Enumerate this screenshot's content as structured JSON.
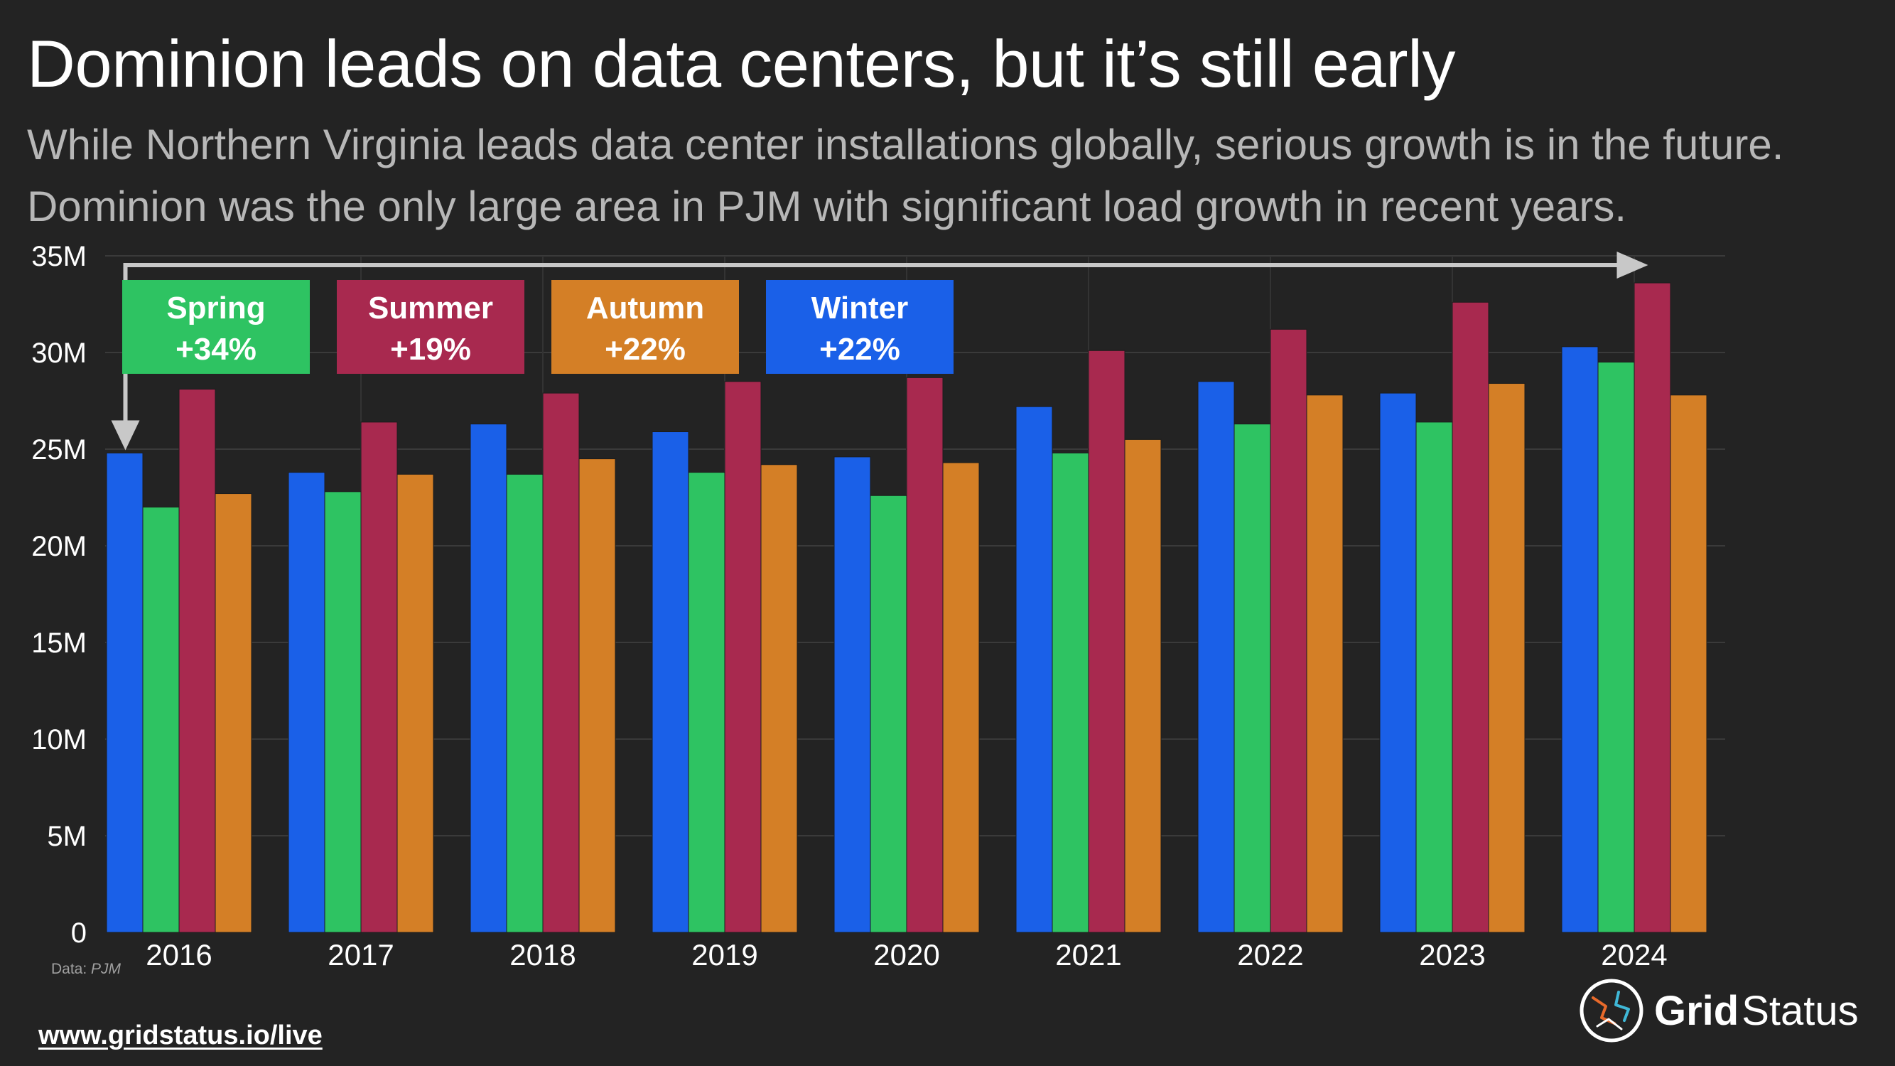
{
  "title": "Dominion leads on data centers, but it’s still early",
  "subtitle": "While Northern Virginia leads data center installations globally, serious growth is in the future. Dominion was the only large area in PJM with significant load growth in recent years.",
  "source": {
    "prefix": "Data:",
    "name": "PJM"
  },
  "link": "www.gridstatus.io/live",
  "brand": {
    "part1": "Grid",
    "part2": "Status",
    "logo_icon": "grid-status-logo-icon"
  },
  "chart_data": {
    "type": "bar",
    "categories": [
      "2016",
      "2017",
      "2018",
      "2019",
      "2020",
      "2021",
      "2022",
      "2023",
      "2024"
    ],
    "series": [
      {
        "name": "Winter",
        "color": "#1a60e8",
        "values": [
          24.8,
          23.8,
          26.3,
          25.9,
          24.6,
          27.2,
          28.5,
          27.9,
          30.3
        ]
      },
      {
        "name": "Spring",
        "color": "#2ec362",
        "values": [
          22.0,
          22.8,
          23.7,
          23.8,
          22.6,
          24.8,
          26.3,
          26.4,
          29.5
        ]
      },
      {
        "name": "Summer",
        "color": "#a8294f",
        "values": [
          28.1,
          26.4,
          27.9,
          28.5,
          28.7,
          30.1,
          31.2,
          32.6,
          33.6
        ]
      },
      {
        "name": "Autumn",
        "color": "#d47f26",
        "values": [
          22.7,
          23.7,
          24.5,
          24.2,
          24.3,
          25.5,
          27.8,
          28.4,
          27.8
        ]
      }
    ],
    "ylim": [
      0,
      35
    ],
    "yticks": [
      0,
      5,
      10,
      15,
      20,
      25,
      30,
      35
    ],
    "ytick_labels": [
      "0",
      "5M",
      "10M",
      "15M",
      "20M",
      "25M",
      "30M",
      "35M"
    ],
    "grid": true,
    "legend_boxes": [
      {
        "name": "Spring",
        "change": "+34%",
        "color": "#2ec362"
      },
      {
        "name": "Summer",
        "change": "+19%",
        "color": "#a8294f"
      },
      {
        "name": "Autumn",
        "change": "+22%",
        "color": "#d47f26"
      },
      {
        "name": "Winter",
        "change": "+22%",
        "color": "#1a60e8"
      }
    ],
    "annotation": {
      "type": "arrow",
      "from_category": "2016",
      "to_category": "2024",
      "color": "#c8c8c8"
    }
  }
}
